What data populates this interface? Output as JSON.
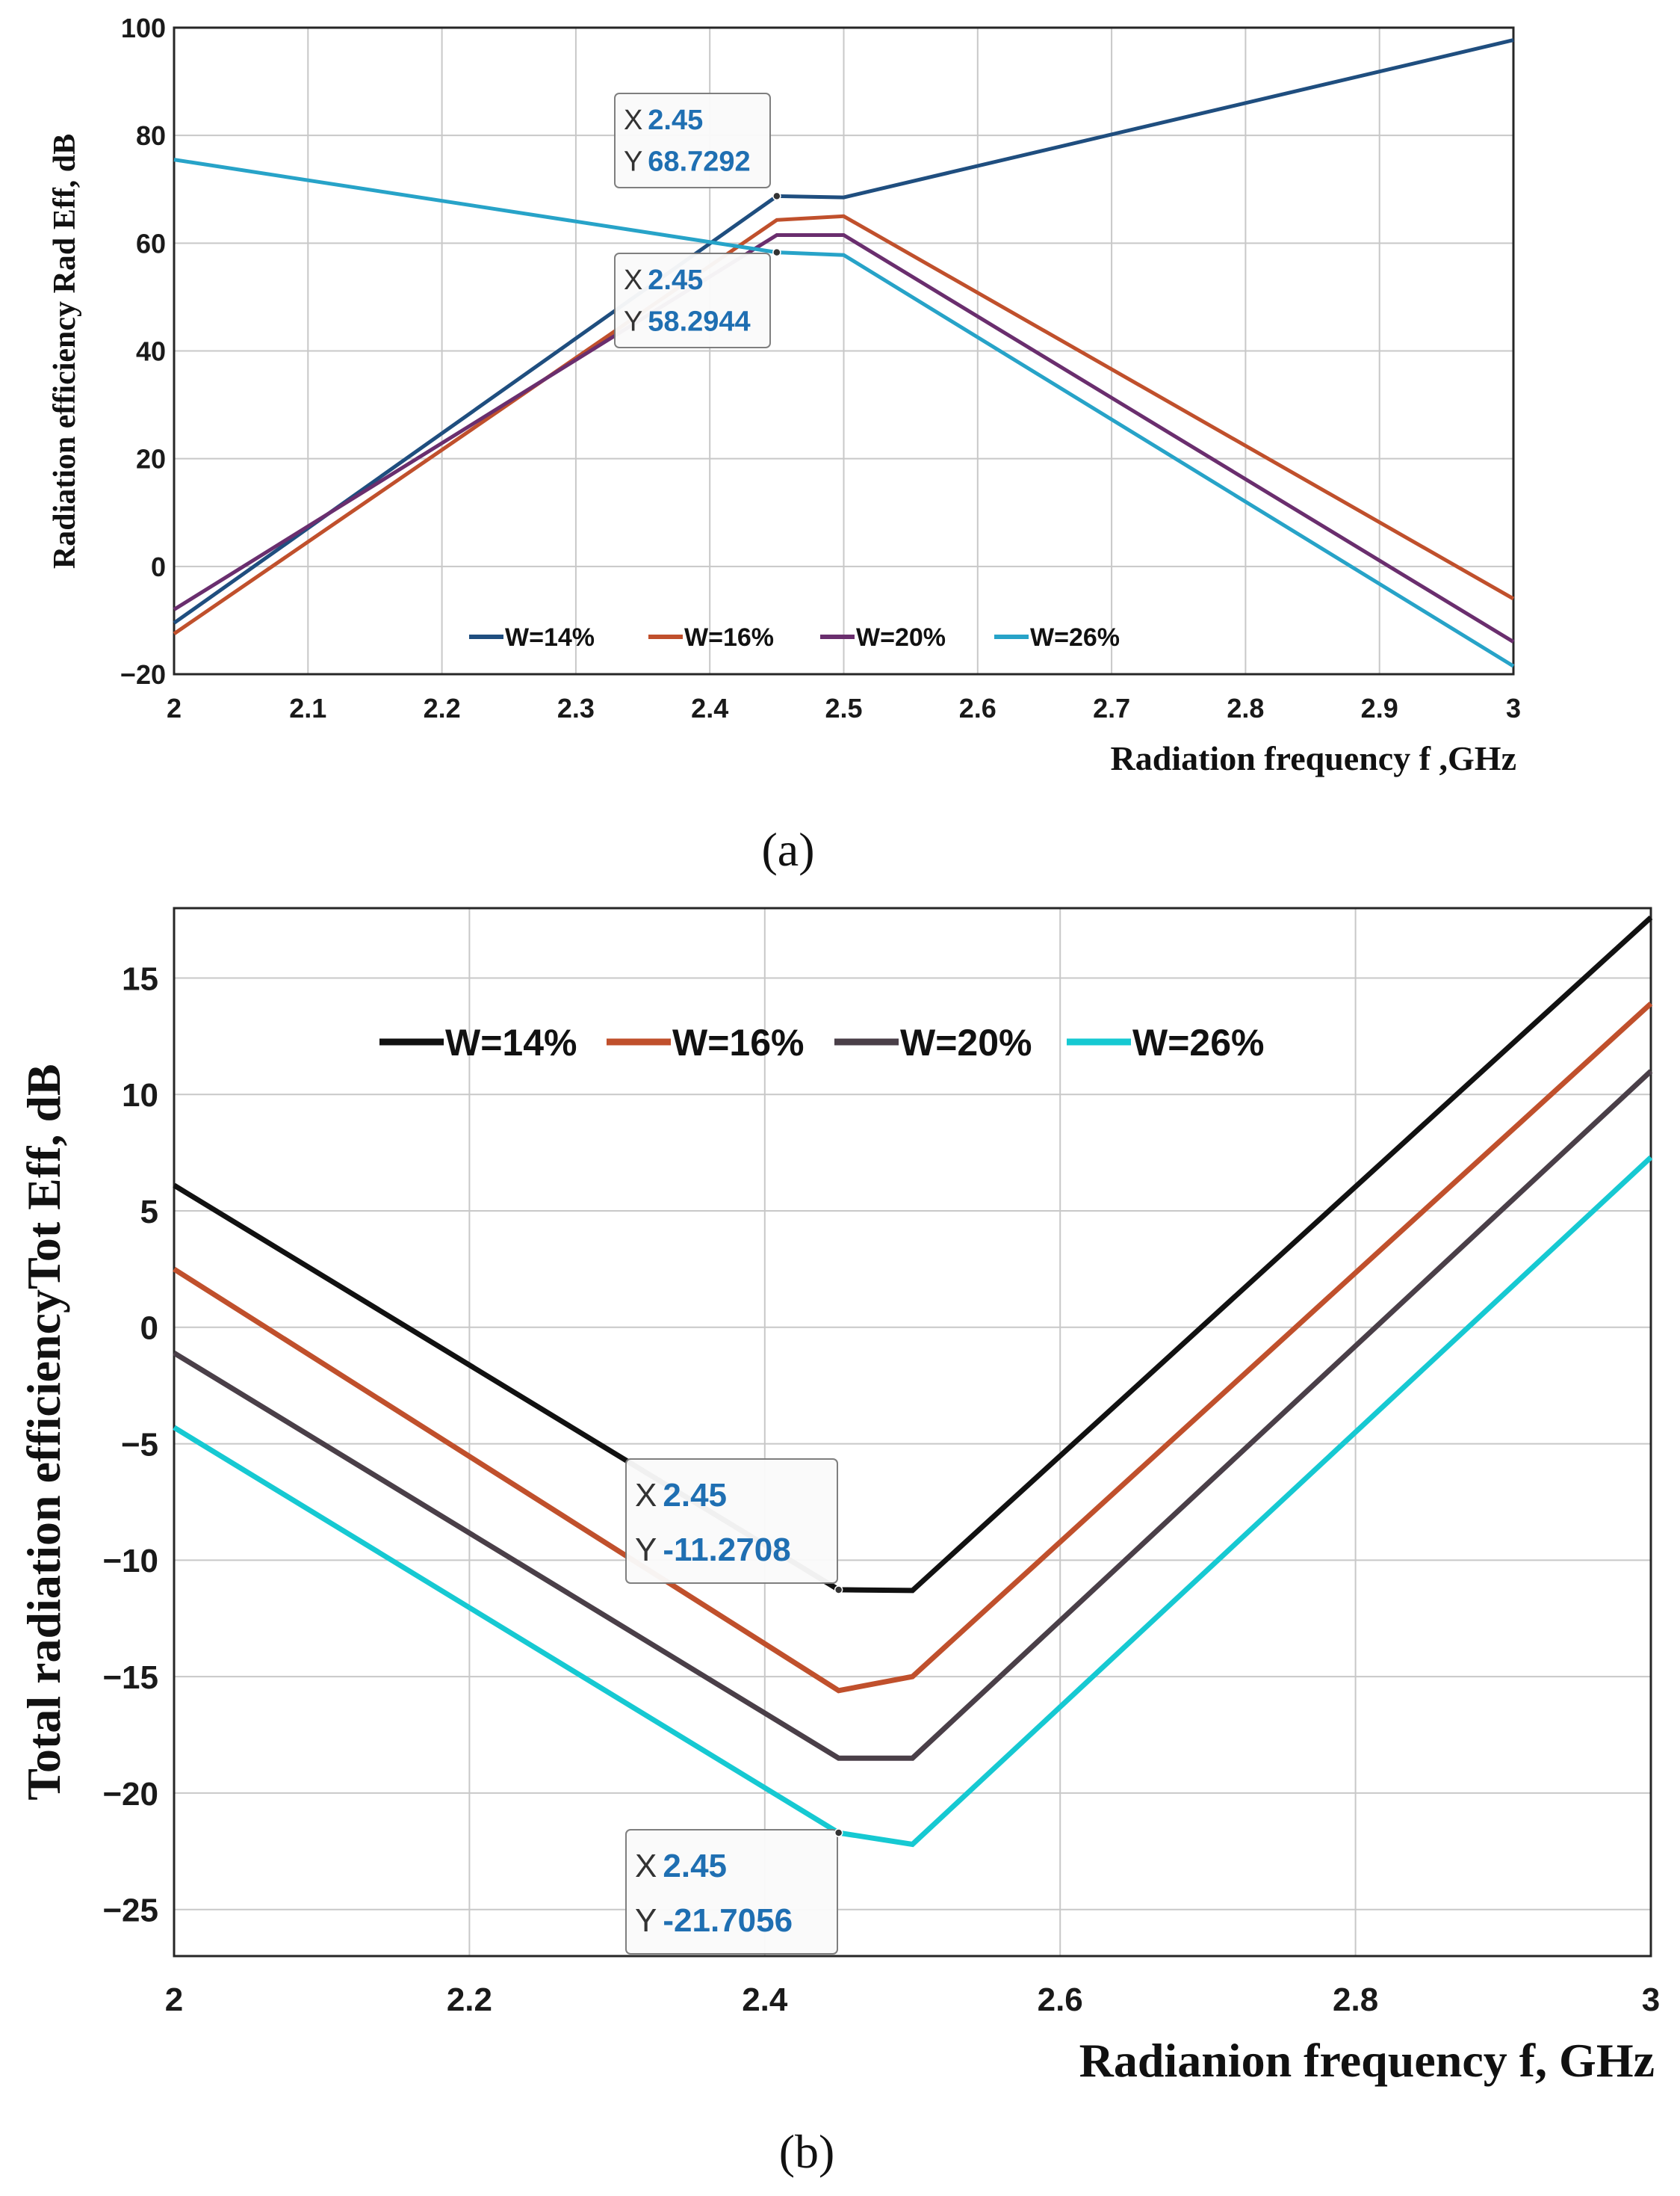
{
  "chart_data": [
    {
      "type": "line",
      "panel_label": "(a)",
      "title": "",
      "xlabel": "Radiation frequency f ,GHz",
      "ylabel": "Radiation efficiency Rad Eff, dB",
      "xlim": [
        2,
        3
      ],
      "ylim": [
        -20,
        100
      ],
      "xticks": [
        "2",
        "2.1",
        "2.2",
        "2.3",
        "2.4",
        "2.5",
        "2.6",
        "2.7",
        "2.8",
        "2.9",
        "3"
      ],
      "yticks": [
        "-20",
        "0",
        "20",
        "40",
        "60",
        "80",
        "100"
      ],
      "grid": true,
      "legend_position": "bottom-center",
      "series": [
        {
          "name": "W=14%",
          "color": "#1f4e7f",
          "x": [
            2,
            2.45,
            2.5,
            3
          ],
          "y": [
            -10.5,
            68.7292,
            68.5,
            97.7
          ]
        },
        {
          "name": "W=16%",
          "color": "#c0502c",
          "x": [
            2,
            2.45,
            2.5,
            3
          ],
          "y": [
            -12.5,
            64.3,
            65,
            -6
          ]
        },
        {
          "name": "W=20%",
          "color": "#6a2e6e",
          "x": [
            2,
            2.45,
            2.5,
            3
          ],
          "y": [
            -8,
            61.5,
            61.5,
            -14
          ]
        },
        {
          "name": "W=26%",
          "color": "#27a3c8",
          "x": [
            2,
            2.45,
            2.5,
            3
          ],
          "y": [
            75.5,
            58.2944,
            57.8,
            -18.5
          ]
        }
      ],
      "datatips": [
        {
          "x_label": "X",
          "x_value": "2.45",
          "y_label": "Y",
          "y_value": "68.7292",
          "x": 2.45,
          "y": 68.7292
        },
        {
          "x_label": "X",
          "x_value": "2.45",
          "y_label": "Y",
          "y_value": "58.2944",
          "x": 2.45,
          "y": 58.2944
        }
      ]
    },
    {
      "type": "line",
      "panel_label": "(b)",
      "title": "",
      "xlabel": "Radianion frequency f, GHz",
      "ylabel": "Total radiation efficiencyTot Eff, dB",
      "xlim": [
        2,
        3
      ],
      "ylim": [
        -27,
        18
      ],
      "xticks": [
        "2",
        "2.2",
        "2.4",
        "2.6",
        "2.8",
        "3"
      ],
      "yticks": [
        "-25",
        "-20",
        "-15",
        "-10",
        "-5",
        "0",
        "5",
        "10",
        "15"
      ],
      "grid": true,
      "legend_position": "top-center",
      "series": [
        {
          "name": "W=14%",
          "color": "#111111",
          "x": [
            2,
            2.45,
            2.5,
            3
          ],
          "y": [
            6.1,
            -11.2708,
            -11.3,
            17.6
          ]
        },
        {
          "name": "W=16%",
          "color": "#c0502c",
          "x": [
            2,
            2.45,
            2.5,
            3
          ],
          "y": [
            2.5,
            -15.6,
            -15.0,
            13.9
          ]
        },
        {
          "name": "W=20%",
          "color": "#4a3f48",
          "x": [
            2,
            2.45,
            2.5,
            3
          ],
          "y": [
            -1.1,
            -18.5,
            -18.5,
            11.0
          ]
        },
        {
          "name": "W=26%",
          "color": "#16c9d2",
          "x": [
            2,
            2.45,
            2.5,
            3
          ],
          "y": [
            -4.3,
            -21.7056,
            -22.2,
            7.3
          ]
        }
      ],
      "datatips": [
        {
          "x_label": "X",
          "x_value": "2.45",
          "y_label": "Y",
          "y_value": "-11.2708",
          "x": 2.45,
          "y": -11.2708
        },
        {
          "x_label": "X",
          "x_value": "2.45",
          "y_label": "Y",
          "y_value": "-21.7056",
          "x": 2.45,
          "y": -21.7056
        }
      ]
    }
  ]
}
